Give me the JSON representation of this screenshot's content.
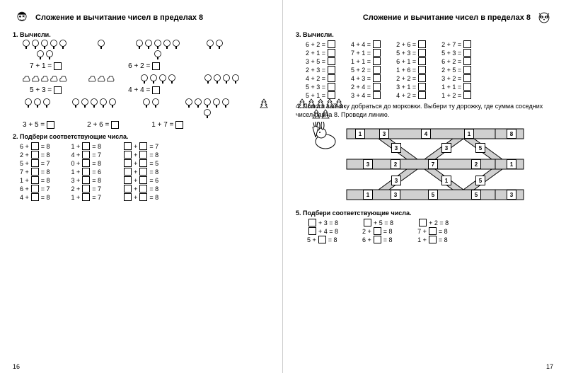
{
  "title": "Сложение и вычитание чисел в пределах 8",
  "page_left_num": "16",
  "page_right_num": "17",
  "left": {
    "task1_label": "1.  Вычисли.",
    "eq1a": "7 + 1 =",
    "eq1b": "6 + 2 =",
    "eq2a": "5 + 3 =",
    "eq2b": "4 + 4 =",
    "eq3a": "3 + 5 =",
    "eq3b": "2 + 6 =",
    "eq3c": "1 + 7 =",
    "task2_label": "2.  Подбери соответствующие числа.",
    "col1": [
      "6 + □ = 8",
      "2 + □ = 8",
      "5 + □ = 7",
      "7 + □ = 8",
      "1 + □ = 8",
      "6 + □ = 7",
      "4 + □ = 8"
    ],
    "col2": [
      "1 + □ = 8",
      "4 + □ = 7",
      "0 + □ = 8",
      "1 + □ = 6",
      "3 + □ = 8",
      "2 + □ = 7",
      "1 + □ = 7"
    ],
    "col3": [
      "□ + □ = 7",
      "□ + □ = 8",
      "□ + □ = 5",
      "□ + □ = 8",
      "□ + □ = 6",
      "□ + □ = 8",
      "□ + □ = 8"
    ]
  },
  "right": {
    "task3_label": "3.  Вычисли.",
    "c1": [
      "6 + 2 =",
      "2 + 1 =",
      "3 + 5 =",
      "2 + 3 =",
      "4 + 2 =",
      "5 + 3 =",
      "5 + 1 ="
    ],
    "c2": [
      "4 + 4 =",
      "7 + 1 =",
      "1 + 1 =",
      "5 + 2 =",
      "4 + 3 =",
      "2 + 4 =",
      "3 + 4 ="
    ],
    "c3": [
      "2 + 6 =",
      "5 + 3 =",
      "6 + 1 =",
      "1 + 6 =",
      "2 + 2 =",
      "3 + 1 =",
      "4 + 2 ="
    ],
    "c4": [
      "2 + 7 =",
      "5 + 3 =",
      "6 + 2 =",
      "2 + 5 =",
      "3 + 2 =",
      "1 + 1 =",
      "1 + 2 ="
    ],
    "task4_text": "4.  Помоги зайчику добраться до морковки. Выбери ту дорожку, где сумма соседних чисел равна 8. Проведи линию.",
    "maze_nums": {
      "a": "1",
      "b": "3",
      "c": "4",
      "d": "1",
      "e": "8",
      "f": "3",
      "g": "2",
      "h": "7",
      "i": "2",
      "j": "1",
      "k": "3",
      "l": "3",
      "m": "5",
      "n": "3",
      "o": "1",
      "p": "5",
      "q": "1",
      "r": "3",
      "s": "5",
      "t": "5"
    },
    "task5_label": "5.  Подбери соответствующие числа.",
    "d1": [
      "□ + 3 = 8",
      "□ + 4 = 8",
      "5 + □ = 8"
    ],
    "d2": [
      "□ + 5 = 8",
      "2 + □ = 8",
      "6 + □ = 8"
    ],
    "d3": [
      "□ + 2 = 8",
      "7 + □ = 8",
      "1 + □ = 8"
    ]
  }
}
